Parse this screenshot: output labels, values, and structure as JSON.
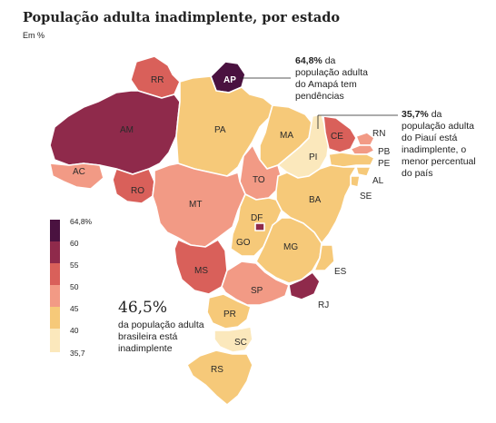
{
  "title": "População adulta inadimplente, por estado",
  "subtitle": "Em %",
  "colors": {
    "c1": "#4a1240",
    "c2": "#8f2a4b",
    "c3": "#d9605a",
    "c4": "#f29a85",
    "c5": "#f6c979",
    "c6": "#fbe8bc"
  },
  "states": {
    "RR": "RR",
    "AP": "AP",
    "AM": "AM",
    "PA": "PA",
    "MA": "MA",
    "CE": "CE",
    "RN": "RN",
    "PB": "PB",
    "PE": "PE",
    "PI": "PI",
    "AL": "AL",
    "SE": "SE",
    "AC": "AC",
    "RO": "RO",
    "TO": "TO",
    "BA": "BA",
    "MT": "MT",
    "DF": "DF",
    "GO": "GO",
    "MG": "MG",
    "ES": "ES",
    "MS": "MS",
    "SP": "SP",
    "RJ": "RJ",
    "PR": "PR",
    "SC": "SC",
    "RS": "RS"
  },
  "annotations": {
    "amapa_value": "64,8%",
    "amapa_text_1": "da",
    "amapa_text_2": "população adulta",
    "amapa_text_3": "do Amapá tem",
    "amapa_text_4": "pendências",
    "piaui_value": "35,7%",
    "piaui_text_1": "da",
    "piaui_text_2": "população adulta",
    "piaui_text_3": "do Piauí está",
    "piaui_text_4": "inadimplente, o",
    "piaui_text_5": "menor percentual",
    "piaui_text_6": "do país"
  },
  "national": {
    "value": "46,5%",
    "desc_1": "da população adulta",
    "desc_2": "brasileira está",
    "desc_3": "inadimplente"
  },
  "legend": {
    "labels": [
      "64,8%",
      "60",
      "55",
      "50",
      "45",
      "40",
      "35,7"
    ]
  }
}
